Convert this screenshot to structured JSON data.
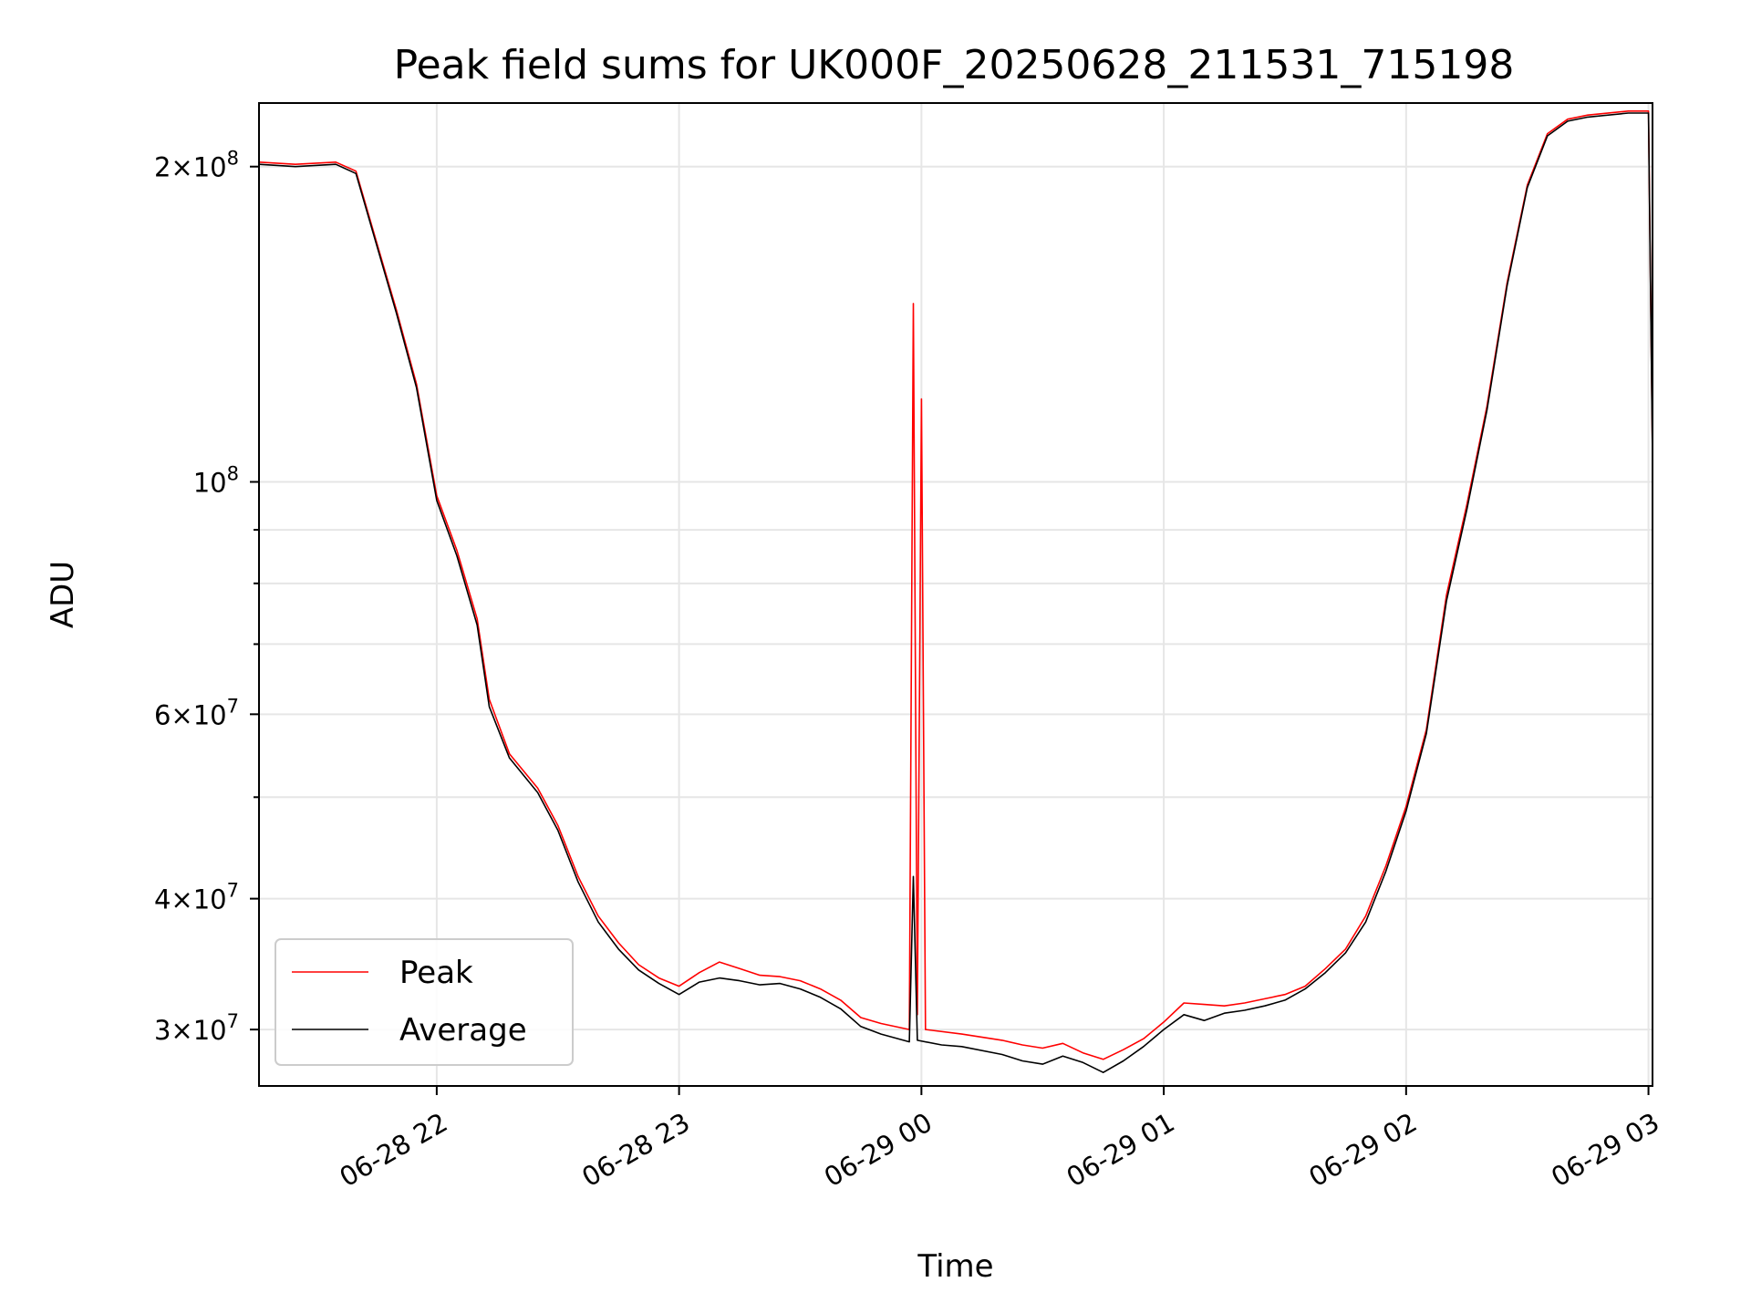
{
  "chart_data": {
    "type": "line",
    "title": "Peak field sums for UK000F_20250628_211531_715198",
    "xlabel": "Time",
    "ylabel": "ADU",
    "y_scale": "log",
    "ylim": [
      26500000,
      230000000
    ],
    "xlim": [
      "06-28 21:16",
      "06-29 03:01"
    ],
    "grid": true,
    "legend_position": "lower-left",
    "x_ticks": [
      {
        "label": "06-28 22",
        "time": "06-28 22:00"
      },
      {
        "label": "06-28 23",
        "time": "06-28 23:00"
      },
      {
        "label": "06-29 00",
        "time": "06-29 00:00"
      },
      {
        "label": "06-29 01",
        "time": "06-29 01:00"
      },
      {
        "label": "06-29 02",
        "time": "06-29 02:00"
      },
      {
        "label": "06-29 03",
        "time": "06-29 03:00"
      }
    ],
    "y_ticks": [
      {
        "base": "3",
        "exp": "7",
        "value": 30000000
      },
      {
        "base": "4",
        "exp": "7",
        "value": 40000000
      },
      {
        "base": "6",
        "exp": "7",
        "value": 60000000
      },
      {
        "base": "",
        "exp": "8",
        "value": 100000000
      },
      {
        "base": "2",
        "exp": "8",
        "value": 200000000
      }
    ],
    "y_minor_ticks": [
      50000000,
      70000000,
      80000000,
      90000000
    ],
    "series": [
      {
        "name": "Peak",
        "color": "#ff0000",
        "points": [
          [
            "06-28 21:16",
            202000000
          ],
          [
            "06-28 21:25",
            201000000
          ],
          [
            "06-28 21:35",
            202000000
          ],
          [
            "06-28 21:40",
            198000000
          ],
          [
            "06-28 21:45",
            170000000
          ],
          [
            "06-28 21:50",
            146000000
          ],
          [
            "06-28 21:55",
            124000000
          ],
          [
            "06-28 22:00",
            97000000
          ],
          [
            "06-28 22:05",
            86000000
          ],
          [
            "06-28 22:10",
            74000000
          ],
          [
            "06-28 22:13",
            62000000
          ],
          [
            "06-28 22:18",
            55000000
          ],
          [
            "06-28 22:25",
            51000000
          ],
          [
            "06-28 22:30",
            47000000
          ],
          [
            "06-28 22:35",
            42000000
          ],
          [
            "06-28 22:40",
            38500000
          ],
          [
            "06-28 22:45",
            36300000
          ],
          [
            "06-28 22:50",
            34600000
          ],
          [
            "06-28 22:55",
            33600000
          ],
          [
            "06-28 23:00",
            33000000
          ],
          [
            "06-28 23:05",
            34000000
          ],
          [
            "06-28 23:10",
            34800000
          ],
          [
            "06-28 23:15",
            34300000
          ],
          [
            "06-28 23:20",
            33800000
          ],
          [
            "06-28 23:25",
            33700000
          ],
          [
            "06-28 23:30",
            33400000
          ],
          [
            "06-28 23:35",
            32800000
          ],
          [
            "06-28 23:40",
            32000000
          ],
          [
            "06-28 23:45",
            30800000
          ],
          [
            "06-28 23:50",
            30400000
          ],
          [
            "06-28 23:57",
            30000000
          ],
          [
            "06-28 23:58",
            148000000
          ],
          [
            "06-28 23:59",
            31000000
          ],
          [
            "06-29 00:00",
            120000000
          ],
          [
            "06-29 00:01",
            30000000
          ],
          [
            "06-29 00:10",
            29700000
          ],
          [
            "06-29 00:20",
            29300000
          ],
          [
            "06-29 00:25",
            29000000
          ],
          [
            "06-29 00:30",
            28800000
          ],
          [
            "06-29 00:35",
            29100000
          ],
          [
            "06-29 00:40",
            28500000
          ],
          [
            "06-29 00:45",
            28100000
          ],
          [
            "06-29 00:50",
            28700000
          ],
          [
            "06-29 00:55",
            29400000
          ],
          [
            "06-29 01:00",
            30500000
          ],
          [
            "06-29 01:05",
            31800000
          ],
          [
            "06-29 01:10",
            31700000
          ],
          [
            "06-29 01:15",
            31600000
          ],
          [
            "06-29 01:20",
            31800000
          ],
          [
            "06-29 01:25",
            32100000
          ],
          [
            "06-29 01:30",
            32400000
          ],
          [
            "06-29 01:35",
            33000000
          ],
          [
            "06-29 01:40",
            34300000
          ],
          [
            "06-29 01:45",
            35800000
          ],
          [
            "06-29 01:50",
            38500000
          ],
          [
            "06-29 01:55",
            43000000
          ],
          [
            "06-29 02:00",
            49000000
          ],
          [
            "06-29 02:05",
            58000000
          ],
          [
            "06-29 02:10",
            78000000
          ],
          [
            "06-29 02:15",
            95000000
          ],
          [
            "06-29 02:20",
            118000000
          ],
          [
            "06-29 02:25",
            155000000
          ],
          [
            "06-29 02:30",
            192000000
          ],
          [
            "06-29 02:35",
            215000000
          ],
          [
            "06-29 02:40",
            222000000
          ],
          [
            "06-29 02:45",
            224000000
          ],
          [
            "06-29 02:55",
            226000000
          ],
          [
            "06-29 03:00",
            226000000
          ],
          [
            "06-29 03:01",
            106000000
          ]
        ]
      },
      {
        "name": "Average",
        "color": "#000000",
        "points": [
          [
            "06-28 21:16",
            201000000
          ],
          [
            "06-28 21:25",
            200000000
          ],
          [
            "06-28 21:35",
            201000000
          ],
          [
            "06-28 21:40",
            197000000
          ],
          [
            "06-28 21:45",
            169000000
          ],
          [
            "06-28 21:50",
            145000000
          ],
          [
            "06-28 21:55",
            123000000
          ],
          [
            "06-28 22:00",
            96000000
          ],
          [
            "06-28 22:05",
            85000000
          ],
          [
            "06-28 22:10",
            73000000
          ],
          [
            "06-28 22:13",
            61000000
          ],
          [
            "06-28 22:18",
            54500000
          ],
          [
            "06-28 22:25",
            50500000
          ],
          [
            "06-28 22:30",
            46500000
          ],
          [
            "06-28 22:35",
            41500000
          ],
          [
            "06-28 22:40",
            38000000
          ],
          [
            "06-28 22:45",
            35800000
          ],
          [
            "06-28 22:50",
            34200000
          ],
          [
            "06-28 22:55",
            33200000
          ],
          [
            "06-28 23:00",
            32400000
          ],
          [
            "06-28 23:05",
            33300000
          ],
          [
            "06-28 23:10",
            33600000
          ],
          [
            "06-28 23:15",
            33400000
          ],
          [
            "06-28 23:20",
            33100000
          ],
          [
            "06-28 23:25",
            33200000
          ],
          [
            "06-28 23:30",
            32800000
          ],
          [
            "06-28 23:35",
            32200000
          ],
          [
            "06-28 23:40",
            31400000
          ],
          [
            "06-28 23:45",
            30200000
          ],
          [
            "06-28 23:50",
            29700000
          ],
          [
            "06-28 23:57",
            29200000
          ],
          [
            "06-28 23:58",
            42000000
          ],
          [
            "06-28 23:59",
            29300000
          ],
          [
            "06-29 00:05",
            29000000
          ],
          [
            "06-29 00:10",
            28900000
          ],
          [
            "06-29 00:20",
            28400000
          ],
          [
            "06-29 00:25",
            28000000
          ],
          [
            "06-29 00:30",
            27800000
          ],
          [
            "06-29 00:35",
            28300000
          ],
          [
            "06-29 00:40",
            27900000
          ],
          [
            "06-29 00:45",
            27300000
          ],
          [
            "06-29 00:50",
            28000000
          ],
          [
            "06-29 00:55",
            28900000
          ],
          [
            "06-29 01:00",
            30000000
          ],
          [
            "06-29 01:05",
            31000000
          ],
          [
            "06-29 01:10",
            30600000
          ],
          [
            "06-29 01:15",
            31100000
          ],
          [
            "06-29 01:20",
            31300000
          ],
          [
            "06-29 01:25",
            31600000
          ],
          [
            "06-29 01:30",
            32000000
          ],
          [
            "06-29 01:35",
            32800000
          ],
          [
            "06-29 01:40",
            34000000
          ],
          [
            "06-29 01:45",
            35500000
          ],
          [
            "06-29 01:50",
            38000000
          ],
          [
            "06-29 01:55",
            42500000
          ],
          [
            "06-29 02:00",
            48500000
          ],
          [
            "06-29 02:05",
            57500000
          ],
          [
            "06-29 02:10",
            77000000
          ],
          [
            "06-29 02:15",
            94000000
          ],
          [
            "06-29 02:20",
            117000000
          ],
          [
            "06-29 02:25",
            154000000
          ],
          [
            "06-29 02:30",
            191000000
          ],
          [
            "06-29 02:35",
            214000000
          ],
          [
            "06-29 02:40",
            221000000
          ],
          [
            "06-29 02:45",
            223000000
          ],
          [
            "06-29 02:55",
            225000000
          ],
          [
            "06-29 03:00",
            225000000
          ],
          [
            "06-29 03:01",
            105000000
          ]
        ]
      }
    ]
  }
}
